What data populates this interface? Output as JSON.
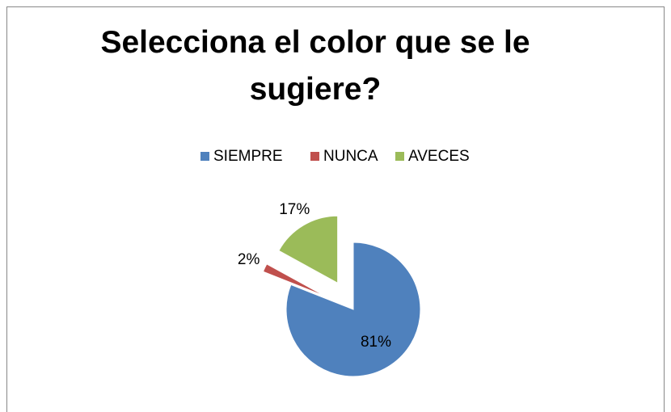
{
  "chart_data": {
    "type": "pie",
    "title": "Selecciona el color que se le sugiere?",
    "series": [
      {
        "name": "SIEMPRE",
        "color": "#4f81bd",
        "values": [
          81
        ]
      },
      {
        "name": "NUNCA",
        "color": "#c0504d",
        "values": [
          2
        ]
      },
      {
        "name": "AVECES",
        "color": "#9bbb59",
        "values": [
          17
        ]
      }
    ],
    "value_labels": [
      "81%",
      "2%",
      "17%"
    ],
    "legend": "top"
  }
}
